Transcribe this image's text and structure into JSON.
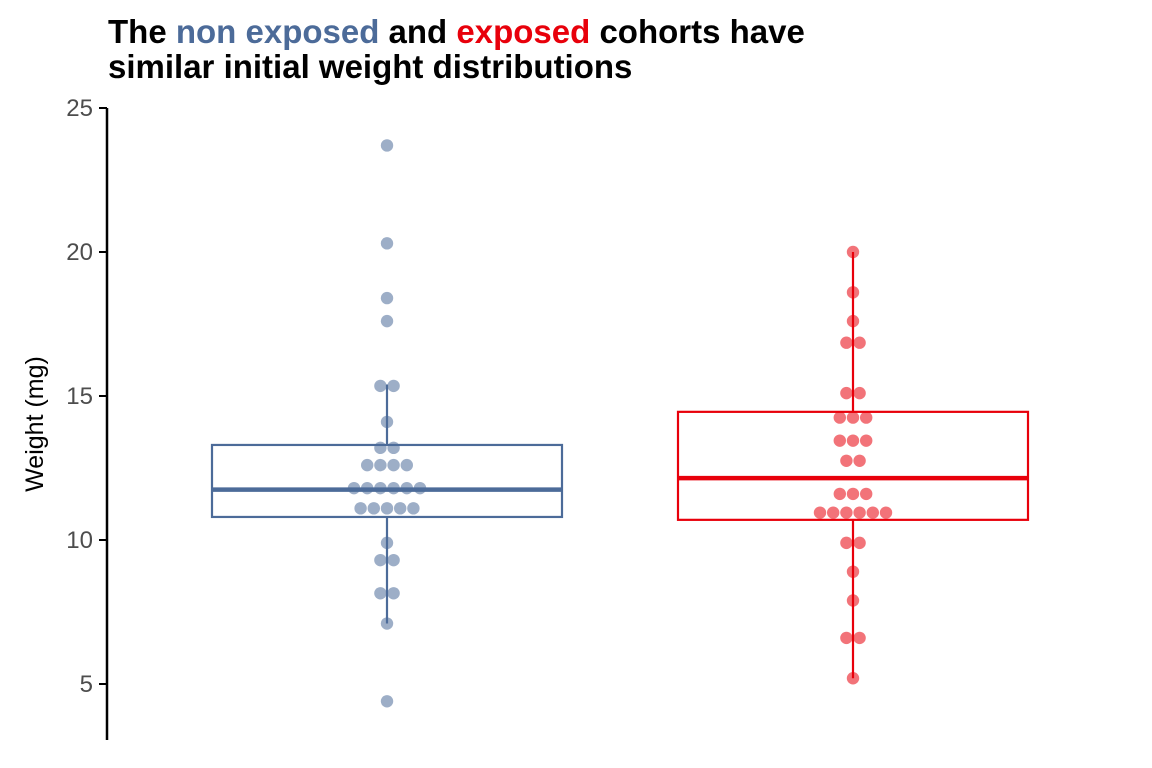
{
  "title": {
    "part1": "The ",
    "highlight1": "non exposed",
    "part2": " and ",
    "highlight2": "exposed",
    "part3": " cohorts have",
    "line2": "similar initial weight distributions"
  },
  "colors": {
    "non_exposed": "#4c6b99",
    "exposed": "#e8000b",
    "axis": "#000000",
    "tick_text": "#4d4d4d"
  },
  "chart_data": {
    "type": "box",
    "title": "The non exposed and exposed cohorts have similar initial weight distributions",
    "ylabel": "Weight (mg)",
    "xlabel": "",
    "ylim": [
      3,
      25
    ],
    "yticks": [
      5,
      10,
      15,
      20,
      25
    ],
    "grid": false,
    "legend": "none",
    "groups": [
      {
        "name": "non exposed",
        "color": "#4c6b99",
        "box": {
          "min": 7.1,
          "q1": 10.8,
          "median": 11.75,
          "q3": 13.3,
          "max": 15.4
        },
        "points": [
          4.4,
          7.1,
          8.15,
          8.15,
          9.3,
          9.3,
          9.9,
          11.1,
          11.1,
          11.1,
          11.1,
          11.1,
          11.8,
          11.8,
          11.8,
          11.8,
          11.8,
          11.8,
          12.6,
          12.6,
          12.6,
          12.6,
          13.2,
          13.2,
          14.1,
          15.35,
          15.35,
          17.6,
          18.4,
          20.3,
          23.7
        ]
      },
      {
        "name": "exposed",
        "color": "#e8000b",
        "box": {
          "min": 5.2,
          "q1": 10.7,
          "median": 12.15,
          "q3": 14.45,
          "max": 20.0
        },
        "points": [
          5.2,
          6.6,
          6.6,
          7.9,
          8.9,
          9.9,
          9.9,
          10.95,
          10.95,
          10.95,
          10.95,
          10.95,
          10.95,
          11.6,
          11.6,
          11.6,
          12.75,
          12.75,
          13.45,
          13.45,
          13.45,
          14.25,
          14.25,
          14.25,
          15.1,
          15.1,
          16.85,
          16.85,
          17.6,
          18.6,
          20.0
        ]
      }
    ]
  }
}
